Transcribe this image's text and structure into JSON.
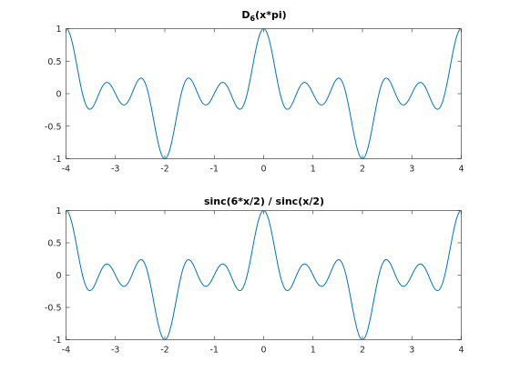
{
  "chart_data": [
    {
      "type": "line",
      "title": "D",
      "title_subscript": "6",
      "title_suffix": "(x*pi)",
      "xlim": [
        -4,
        4
      ],
      "ylim": [
        -1,
        1
      ],
      "xticks": [
        -4,
        -3,
        -2,
        -1,
        0,
        1,
        2,
        3,
        4
      ],
      "yticks": [
        -1,
        -0.5,
        0,
        0.5,
        1
      ],
      "xtick_labels": [
        "-4",
        "-3",
        "-2",
        "-1",
        "0",
        "1",
        "2",
        "3",
        "4"
      ],
      "ytick_labels": [
        "-1",
        "-0.5",
        "0",
        "0.5",
        "1"
      ],
      "function": "sin(6*pi*x/2)/(6*sin(pi*x/2))",
      "series_color": "#0072bd",
      "grid": false
    },
    {
      "type": "line",
      "title": "sinc(6*x/2) / sinc(x/2)",
      "xlim": [
        -4,
        4
      ],
      "ylim": [
        -1,
        1
      ],
      "xticks": [
        -4,
        -3,
        -2,
        -1,
        0,
        1,
        2,
        3,
        4
      ],
      "yticks": [
        -1,
        -0.5,
        0,
        0.5,
        1
      ],
      "xtick_labels": [
        "-4",
        "-3",
        "-2",
        "-1",
        "0",
        "1",
        "2",
        "3",
        "4"
      ],
      "ytick_labels": [
        "-1",
        "-0.5",
        "0",
        "0.5",
        "1"
      ],
      "function": "sin(6*pi*x/2)/(6*sin(pi*x/2))",
      "series_color": "#0072bd",
      "grid": false
    }
  ]
}
